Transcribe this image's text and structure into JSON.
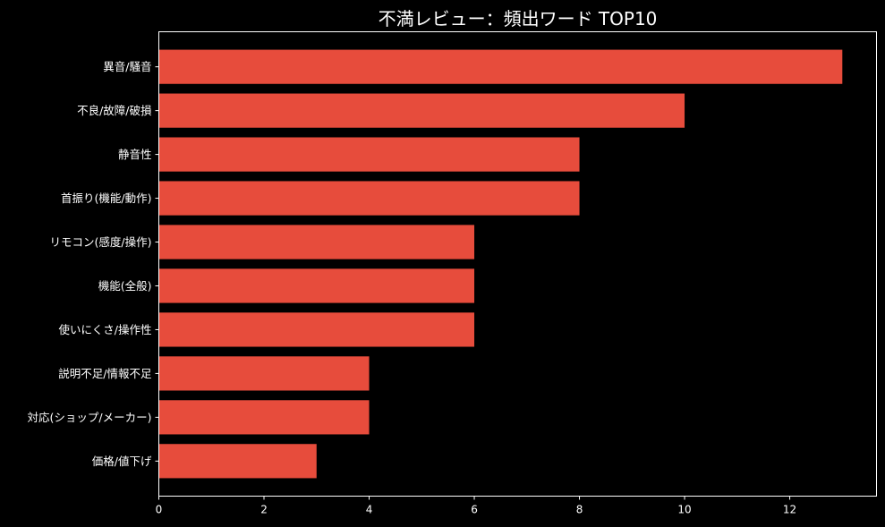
{
  "chart_data": {
    "type": "bar",
    "orientation": "horizontal",
    "title": "不満レビュー：頻出ワード TOP10",
    "xlabel": "",
    "ylabel": "",
    "categories": [
      "異音/騒音",
      "不良/故障/破損",
      "静音性",
      "首振り(機能/動作)",
      "リモコン(感度/操作)",
      "機能(全般)",
      "使いにくさ/操作性",
      "説明不足/情報不足",
      "対応(ショップ/メーカー)",
      "価格/値下げ"
    ],
    "values": [
      13,
      10,
      8,
      8,
      6,
      6,
      6,
      4,
      4,
      3
    ],
    "xlim": [
      0,
      13.65
    ],
    "xticks": [
      0,
      2,
      4,
      6,
      8,
      10,
      12
    ],
    "grid": false,
    "bar_color": "#e74c3c",
    "background_color": "#000000",
    "axis_color": "#ffffff",
    "text_color": "#ffffff"
  }
}
